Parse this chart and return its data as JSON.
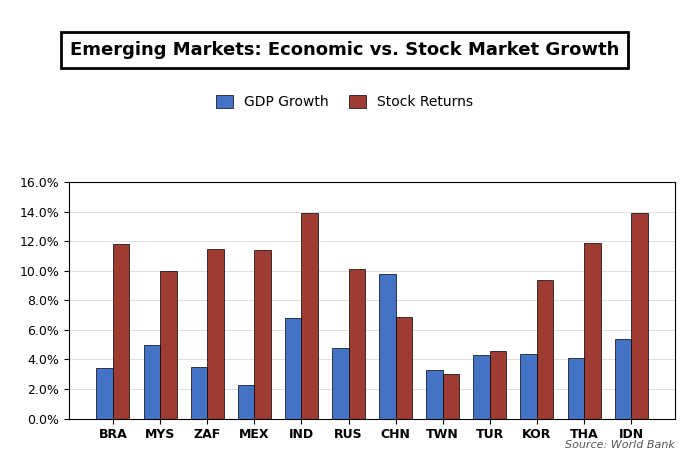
{
  "title": "Emerging Markets: Economic vs. Stock Market Growth",
  "categories": [
    "BRA",
    "MYS",
    "ZAF",
    "MEX",
    "IND",
    "RUS",
    "CHN",
    "TWN",
    "TUR",
    "KOR",
    "THA",
    "IDN"
  ],
  "gdp_growth": [
    0.034,
    0.05,
    0.035,
    0.023,
    0.068,
    0.048,
    0.098,
    0.033,
    0.043,
    0.044,
    0.041,
    0.054
  ],
  "stock_returns": [
    0.118,
    0.1,
    0.115,
    0.114,
    0.139,
    0.101,
    0.069,
    0.03,
    0.046,
    0.094,
    0.119,
    0.139
  ],
  "gdp_color": "#4472C4",
  "stock_color": "#9E3B33",
  "gdp_label": "GDP Growth",
  "stock_label": "Stock Returns",
  "ylim": [
    0,
    0.16
  ],
  "yticks": [
    0.0,
    0.02,
    0.04,
    0.06,
    0.08,
    0.1,
    0.12,
    0.14,
    0.16
  ],
  "source_text": "Source: World Bank",
  "background_color": "#ffffff",
  "plot_bg_color": "#ffffff",
  "bar_width": 0.35,
  "title_fontsize": 13,
  "legend_fontsize": 10,
  "axis_fontsize": 9,
  "source_fontsize": 8
}
